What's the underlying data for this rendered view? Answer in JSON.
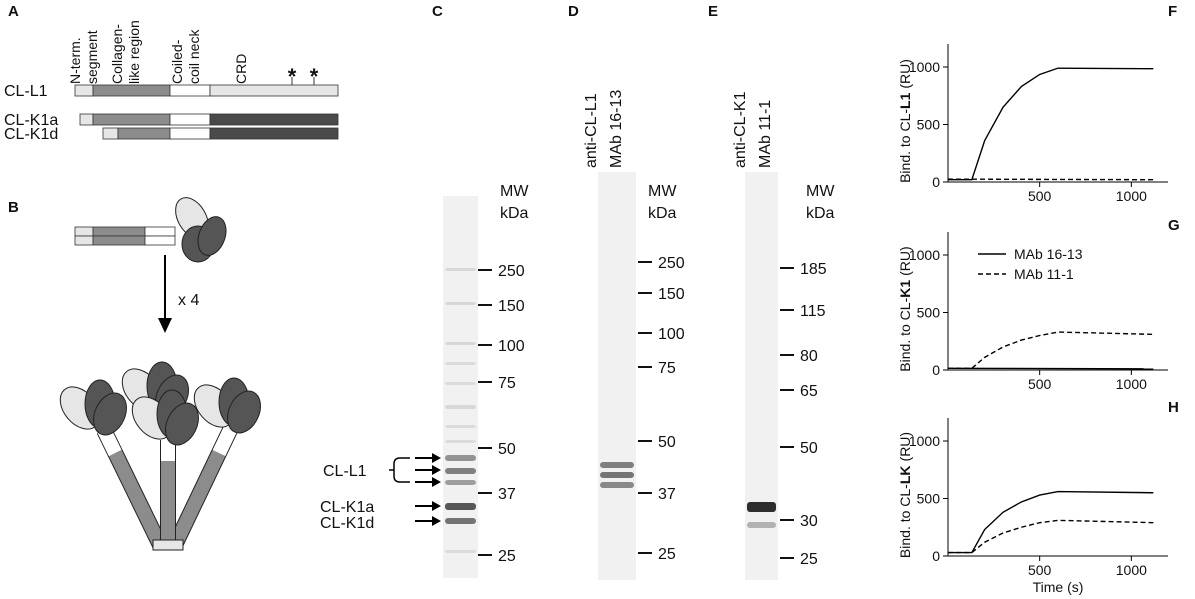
{
  "panel_labels": [
    "A",
    "B",
    "C",
    "D",
    "E",
    "F",
    "G",
    "H"
  ],
  "panel_a": {
    "domains": [
      [
        "N-term.",
        "segment"
      ],
      [
        "Collagen-",
        "like region"
      ],
      [
        "Coiled-",
        "coil neck"
      ],
      [
        "CRD"
      ]
    ],
    "rows": [
      "CL-L1",
      "CL-K1a",
      "CL-K1d"
    ],
    "sites": [
      "*",
      "*"
    ]
  },
  "panel_b": {
    "multiplier": "x 4"
  },
  "panel_c": {
    "header": [
      "MW",
      "kDa"
    ],
    "markers": [
      "250",
      "150",
      "100",
      "75",
      "50",
      "37",
      "25"
    ],
    "band_labels": [
      "CL-L1",
      "CL-K1a",
      "CL-K1d"
    ]
  },
  "panel_d": {
    "title": [
      "anti-CL-L1",
      "MAb 16-13"
    ],
    "header": [
      "MW",
      "kDa"
    ],
    "markers": [
      "250",
      "150",
      "100",
      "75",
      "50",
      "37",
      "25"
    ]
  },
  "panel_e": {
    "title": [
      "anti-CL-K1",
      "MAb 11-1"
    ],
    "header": [
      "MW",
      "kDa"
    ],
    "markers": [
      "185",
      "115",
      "80",
      "65",
      "50",
      "30",
      "25"
    ]
  },
  "chart_data": [
    {
      "type": "line",
      "ylabel": [
        "Bind. to CL-",
        "L1",
        "(RU)"
      ],
      "xlim": [
        0,
        1200
      ],
      "ylim": [
        0,
        1200
      ],
      "xticks": [
        500,
        1000
      ],
      "yticks": [
        0,
        500,
        1000
      ],
      "series": [
        {
          "color": "#000000",
          "dash": false,
          "x": [
            0,
            130,
            200,
            300,
            400,
            500,
            600,
            1120
          ],
          "values": [
            20,
            20,
            360,
            650,
            830,
            935,
            990,
            985
          ]
        },
        {
          "color": "#000000",
          "dash": true,
          "x": [
            0,
            1120
          ],
          "values": [
            25,
            20
          ]
        }
      ]
    },
    {
      "type": "line",
      "ylabel": [
        "Bind. to CL-",
        "K1",
        "(RU)"
      ],
      "xlim": [
        0,
        1200
      ],
      "ylim": [
        0,
        1200
      ],
      "xticks": [
        500,
        1000
      ],
      "yticks": [
        0,
        500,
        1000
      ],
      "series": [
        {
          "name": "MAb 16-13",
          "color": "#000000",
          "dash": false,
          "x": [
            0,
            1120
          ],
          "values": [
            15,
            10
          ]
        },
        {
          "name": "MAb 11-1",
          "color": "#000000",
          "dash": true,
          "x": [
            0,
            130,
            200,
            300,
            400,
            500,
            600,
            1120
          ],
          "values": [
            15,
            15,
            110,
            200,
            260,
            300,
            330,
            310
          ]
        }
      ]
    },
    {
      "type": "line",
      "ylabel": [
        "Bind. to CL-",
        "LK",
        "(RU)"
      ],
      "xlabel": "Time (s)",
      "xlim": [
        0,
        1200
      ],
      "ylim": [
        0,
        1200
      ],
      "xticks": [
        500,
        1000
      ],
      "yticks": [
        0,
        500,
        1000
      ],
      "series": [
        {
          "color": "#000000",
          "dash": false,
          "x": [
            0,
            130,
            200,
            300,
            400,
            500,
            600,
            1120
          ],
          "values": [
            30,
            30,
            230,
            380,
            470,
            530,
            560,
            550
          ]
        },
        {
          "color": "#000000",
          "dash": true,
          "x": [
            0,
            130,
            200,
            300,
            400,
            500,
            600,
            1120
          ],
          "values": [
            30,
            30,
            120,
            200,
            250,
            290,
            310,
            290
          ]
        }
      ]
    }
  ]
}
